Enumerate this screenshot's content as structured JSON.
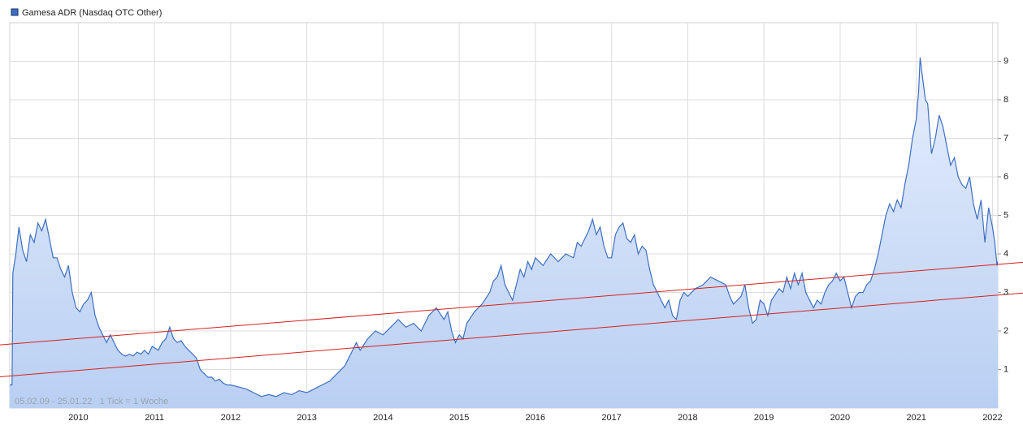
{
  "chart_data": {
    "type": "area",
    "footnote": "05.02.09 - 25.01.22   1 Tick = 1 Woche",
    "xlim": [
      2009.1,
      2022.07
    ],
    "ylim": [
      0,
      10
    ],
    "xticks": [
      2010,
      2011,
      2012,
      2013,
      2014,
      2015,
      2016,
      2017,
      2018,
      2019,
      2020,
      2021,
      2022
    ],
    "yticks": [
      1,
      2,
      3,
      4,
      5,
      6,
      7,
      8,
      9
    ],
    "grid": true,
    "x": [
      2009.1,
      2009.13,
      2009.14,
      2009.18,
      2009.22,
      2009.27,
      2009.32,
      2009.37,
      2009.42,
      2009.47,
      2009.52,
      2009.57,
      2009.62,
      2009.67,
      2009.72,
      2009.77,
      2009.82,
      2009.87,
      2009.92,
      2009.97,
      2010.02,
      2010.07,
      2010.12,
      2010.17,
      2010.22,
      2010.27,
      2010.32,
      2010.37,
      2010.42,
      2010.47,
      2010.52,
      2010.57,
      2010.62,
      2010.67,
      2010.72,
      2010.77,
      2010.82,
      2010.87,
      2010.92,
      2010.97,
      2011.05,
      2011.1,
      2011.15,
      2011.2,
      2011.25,
      2011.3,
      2011.35,
      2011.4,
      2011.45,
      2011.5,
      2011.55,
      2011.6,
      2011.65,
      2011.7,
      2011.75,
      2011.8,
      2011.85,
      2011.9,
      2011.95,
      2012.0,
      2012.1,
      2012.2,
      2012.3,
      2012.4,
      2012.5,
      2012.6,
      2012.7,
      2012.8,
      2012.9,
      2013.0,
      2013.1,
      2013.2,
      2013.3,
      2013.4,
      2013.5,
      2013.6,
      2013.65,
      2013.7,
      2013.8,
      2013.9,
      2014.0,
      2014.1,
      2014.2,
      2014.3,
      2014.4,
      2014.5,
      2014.6,
      2014.7,
      2014.8,
      2014.85,
      2014.9,
      2014.95,
      2015.0,
      2015.05,
      2015.1,
      2015.2,
      2015.3,
      2015.4,
      2015.45,
      2015.5,
      2015.55,
      2015.6,
      2015.65,
      2015.7,
      2015.75,
      2015.8,
      2015.85,
      2015.9,
      2015.95,
      2016.0,
      2016.1,
      2016.2,
      2016.3,
      2016.4,
      2016.5,
      2016.55,
      2016.6,
      2016.7,
      2016.75,
      2016.8,
      2016.85,
      2016.9,
      2016.95,
      2017.0,
      2017.05,
      2017.1,
      2017.15,
      2017.2,
      2017.25,
      2017.3,
      2017.35,
      2017.4,
      2017.45,
      2017.5,
      2017.55,
      2017.6,
      2017.65,
      2017.7,
      2017.75,
      2017.8,
      2017.85,
      2017.9,
      2017.95,
      2018.0,
      2018.1,
      2018.2,
      2018.3,
      2018.4,
      2018.5,
      2018.55,
      2018.6,
      2018.7,
      2018.75,
      2018.8,
      2018.85,
      2018.9,
      2018.95,
      2019.0,
      2019.05,
      2019.1,
      2019.2,
      2019.25,
      2019.3,
      2019.35,
      2019.4,
      2019.45,
      2019.5,
      2019.55,
      2019.6,
      2019.65,
      2019.7,
      2019.75,
      2019.8,
      2019.85,
      2019.9,
      2019.95,
      2020.0,
      2020.05,
      2020.1,
      2020.15,
      2020.2,
      2020.25,
      2020.3,
      2020.35,
      2020.4,
      2020.45,
      2020.5,
      2020.55,
      2020.6,
      2020.65,
      2020.7,
      2020.75,
      2020.8,
      2020.85,
      2020.9,
      2020.95,
      2021.0,
      2021.03,
      2021.05,
      2021.08,
      2021.12,
      2021.15,
      2021.2,
      2021.25,
      2021.3,
      2021.35,
      2021.4,
      2021.45,
      2021.5,
      2021.55,
      2021.6,
      2021.65,
      2021.7,
      2021.75,
      2021.8,
      2021.85,
      2021.9,
      2021.95,
      2022.0,
      2022.03,
      2022.06,
      2022.07
    ],
    "series": [
      {
        "name": "Gamesa ADR (Nasdaq OTC Other)",
        "color": "#3d6fc0",
        "values": [
          0.6,
          0.6,
          3.5,
          4.0,
          4.7,
          4.1,
          3.8,
          4.5,
          4.3,
          4.8,
          4.6,
          4.9,
          4.4,
          3.9,
          3.9,
          3.6,
          3.4,
          3.7,
          3.0,
          2.6,
          2.5,
          2.7,
          2.8,
          3.0,
          2.4,
          2.1,
          1.9,
          1.7,
          1.9,
          1.7,
          1.5,
          1.4,
          1.35,
          1.4,
          1.35,
          1.45,
          1.4,
          1.5,
          1.4,
          1.6,
          1.5,
          1.7,
          1.8,
          2.1,
          1.8,
          1.7,
          1.75,
          1.6,
          1.5,
          1.4,
          1.3,
          1.0,
          0.9,
          0.8,
          0.8,
          0.7,
          0.75,
          0.65,
          0.6,
          0.6,
          0.55,
          0.5,
          0.4,
          0.3,
          0.35,
          0.3,
          0.4,
          0.35,
          0.45,
          0.4,
          0.5,
          0.6,
          0.7,
          0.9,
          1.1,
          1.5,
          1.7,
          1.5,
          1.8,
          2.0,
          1.9,
          2.1,
          2.3,
          2.1,
          2.2,
          2.0,
          2.4,
          2.6,
          2.3,
          2.5,
          2.0,
          1.7,
          1.9,
          1.8,
          2.2,
          2.5,
          2.7,
          3.0,
          3.3,
          3.4,
          3.7,
          3.2,
          3.0,
          2.8,
          3.2,
          3.6,
          3.4,
          3.8,
          3.6,
          3.9,
          3.7,
          4.0,
          3.8,
          4.0,
          3.9,
          4.3,
          4.2,
          4.6,
          4.9,
          4.5,
          4.7,
          4.2,
          3.9,
          3.9,
          4.5,
          4.7,
          4.8,
          4.4,
          4.3,
          4.5,
          4.0,
          4.2,
          4.1,
          3.6,
          3.2,
          3.0,
          2.8,
          2.6,
          2.8,
          2.4,
          2.3,
          2.8,
          3.0,
          2.9,
          3.1,
          3.2,
          3.4,
          3.3,
          3.2,
          2.9,
          2.7,
          2.9,
          3.2,
          2.6,
          2.2,
          2.3,
          2.8,
          2.7,
          2.4,
          2.8,
          3.1,
          3.0,
          3.4,
          3.1,
          3.5,
          3.2,
          3.5,
          3.0,
          2.8,
          2.6,
          2.8,
          2.7,
          3.0,
          3.2,
          3.3,
          3.5,
          3.3,
          3.4,
          3.0,
          2.6,
          2.9,
          3.0,
          3.0,
          3.2,
          3.3,
          3.6,
          4.0,
          4.5,
          5.0,
          5.3,
          5.1,
          5.4,
          5.2,
          5.8,
          6.3,
          7.0,
          7.5,
          8.2,
          9.1,
          8.6,
          8.0,
          7.9,
          6.6,
          7.0,
          7.6,
          7.3,
          6.8,
          6.3,
          6.5,
          6.0,
          5.8,
          5.7,
          6.0,
          5.3,
          4.9,
          5.4,
          4.3,
          5.2,
          4.7,
          4.3,
          3.7,
          3.8
        ]
      }
    ],
    "trendlines": [
      {
        "color": "#d62020",
        "x": [
          2009.1,
          2022.07
        ],
        "values": [
          1.66,
          3.73
        ]
      },
      {
        "color": "#d62020",
        "x": [
          2009.1,
          2022.07
        ],
        "values": [
          0.83,
          2.93
        ]
      }
    ]
  }
}
